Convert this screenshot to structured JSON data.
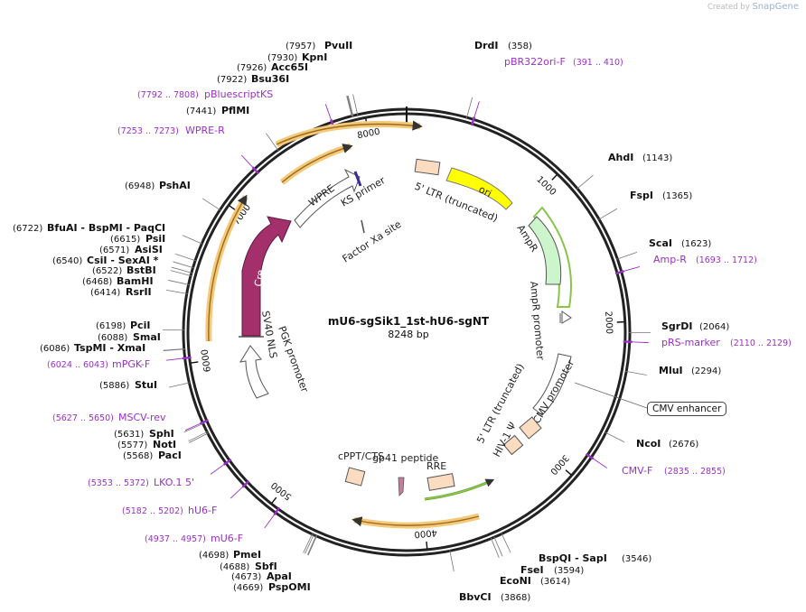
{
  "brand": {
    "prefix": "Created by",
    "name": "SnapGene"
  },
  "plasmid": {
    "name": "mU6-sgSik1_1st-hU6-sgNT",
    "size": "8248 bp",
    "length": 8248
  },
  "ticks": [
    "1000",
    "2000",
    "3000",
    "4000",
    "5000",
    "6000",
    "7000",
    "8000"
  ],
  "enzymes": [
    {
      "name": "PvuII",
      "pos": "(7957)",
      "bp": 7957
    },
    {
      "name": "KpnI",
      "pos": "(7930)",
      "bp": 7930
    },
    {
      "name": "Acc65I",
      "pos": "(7926)",
      "bp": 7926
    },
    {
      "name": "Bsu36I",
      "pos": "(7922)",
      "bp": 7922
    },
    {
      "name": "PflMI",
      "pos": "(7441)",
      "bp": 7441
    },
    {
      "name": "PshAI",
      "pos": "(6948)",
      "bp": 6948
    },
    {
      "name": "BfuAI  - BspMI  - PaqCI",
      "pos": "(6722)",
      "bp": 6722
    },
    {
      "name": "PsiI",
      "pos": "(6615)",
      "bp": 6615
    },
    {
      "name": "AsiSI",
      "pos": "(6571)",
      "bp": 6571
    },
    {
      "name": "CsiI  - SexAI *",
      "pos": "(6540)",
      "bp": 6540
    },
    {
      "name": "BstBI",
      "pos": "(6522)",
      "bp": 6522
    },
    {
      "name": "BamHI",
      "pos": "(6468)",
      "bp": 6468
    },
    {
      "name": "RsrII",
      "pos": "(6414)",
      "bp": 6414
    },
    {
      "name": "PciI",
      "pos": "(6198)",
      "bp": 6198
    },
    {
      "name": "SmaI",
      "pos": "(6088)",
      "bp": 6088
    },
    {
      "name": "TspMI  - XmaI",
      "pos": "(6086)",
      "bp": 6086
    },
    {
      "name": "StuI",
      "pos": "(5886)",
      "bp": 5886
    },
    {
      "name": "SphI",
      "pos": "(5631)",
      "bp": 5631
    },
    {
      "name": "NotI",
      "pos": "(5577)",
      "bp": 5577
    },
    {
      "name": "PacI",
      "pos": "(5568)",
      "bp": 5568
    },
    {
      "name": "PmeI",
      "pos": "(4698)",
      "bp": 4698
    },
    {
      "name": "SbfI",
      "pos": "(4688)",
      "bp": 4688
    },
    {
      "name": "ApaI",
      "pos": "(4673)",
      "bp": 4673
    },
    {
      "name": "PspOMI",
      "pos": "(4669)",
      "bp": 4669
    },
    {
      "name": "DrdI",
      "pos": "(358)",
      "bp": 358
    },
    {
      "name": "AhdI",
      "pos": "(1143)",
      "bp": 1143
    },
    {
      "name": "FspI",
      "pos": "(1365)",
      "bp": 1365
    },
    {
      "name": "ScaI",
      "pos": "(1623)",
      "bp": 1623
    },
    {
      "name": "SgrDI",
      "pos": "(2064)",
      "bp": 2064
    },
    {
      "name": "MluI",
      "pos": "(2294)",
      "bp": 2294
    },
    {
      "name": "NcoI",
      "pos": "(2676)",
      "bp": 2676
    },
    {
      "name": "BspQI  - SapI",
      "pos": "(3546)",
      "bp": 3546
    },
    {
      "name": "FseI",
      "pos": "(3594)",
      "bp": 3594
    },
    {
      "name": "EcoNI",
      "pos": "(3614)",
      "bp": 3614
    },
    {
      "name": "BbvCI",
      "pos": "(3868)",
      "bp": 3868
    }
  ],
  "primers": [
    {
      "name": "pBluescriptKS",
      "range": "(7792 .. 7808)",
      "bp": 7800
    },
    {
      "name": "WPRE-R",
      "range": "(7253 .. 7273)",
      "bp": 7263
    },
    {
      "name": "mPGK-F",
      "range": "(6024 .. 6043)",
      "bp": 6033
    },
    {
      "name": "MSCV-rev",
      "range": "(5627 .. 5650)",
      "bp": 5638
    },
    {
      "name": "LKO.1 5'",
      "range": "(5353 .. 5372)",
      "bp": 5362
    },
    {
      "name": "hU6-F",
      "range": "(5182 .. 5202)",
      "bp": 5192
    },
    {
      "name": "mU6-F",
      "range": "(4937 .. 4957)",
      "bp": 4947
    },
    {
      "name": "pBR322ori-F",
      "range": "(391 .. 410)",
      "bp": 400
    },
    {
      "name": "Amp-R",
      "range": "(1693 .. 1712)",
      "bp": 1702
    },
    {
      "name": "pRS-marker",
      "range": "(2110 .. 2129)",
      "bp": 2119
    },
    {
      "name": "CMV-F",
      "range": "(2835 .. 2855)",
      "bp": 2845
    }
  ],
  "features": {
    "ori": "ori",
    "ampr": "AmpR",
    "ampr_promoter": "AmpR promoter",
    "ltr5_top": "5' LTR (truncated)",
    "cmv_enhancer": "CMV enhancer",
    "cmv_promoter": "CMV promoter",
    "ltr5_bottom": "5' LTR (truncated)",
    "hiv_psi": "HIV-1 Ψ",
    "rre": "RRE",
    "gp41": "gp41 peptide",
    "cppt": "cPPT/CTS",
    "cre": "Cre",
    "sv40_nls": "SV40 NLS",
    "pgk": "PGK promoter",
    "wpre": "WPRE",
    "ks_primer": "KS primer",
    "factor_xa": "Factor Xa site"
  },
  "colors": {
    "ori": "#ffff00",
    "ampr": "#ccf5cc",
    "cre": "#a3306a",
    "orf_orange": "#f5c97a",
    "orf_green": "#9acd32",
    "primer": "#9b30c6",
    "pale_box": "#fbdcc0",
    "gp41": "#c27fa0"
  }
}
